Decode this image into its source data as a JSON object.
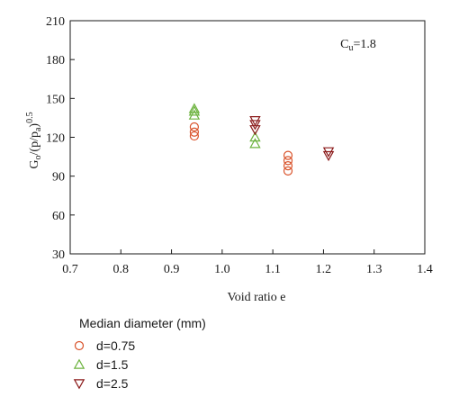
{
  "chart_data": {
    "type": "scatter",
    "xlabel": "Void ratio e",
    "ylabel": {
      "main": "G",
      "sub1": "o",
      "mid1": "/(p/p",
      "sub2": "a",
      "mid2": ")",
      "sup": "0.5"
    },
    "xlim": [
      0.7,
      1.4
    ],
    "ylim": [
      30,
      210
    ],
    "xticks": [
      "0.7",
      "0.8",
      "0.9",
      "1.0",
      "1.1",
      "1.2",
      "1.3",
      "1.4"
    ],
    "yticks": [
      "30",
      "60",
      "90",
      "120",
      "150",
      "180",
      "210"
    ],
    "annotation": {
      "main": "C",
      "sub": "u",
      "rest": "=1.8"
    },
    "grid": false,
    "legend": {
      "title": "Median diameter (mm)",
      "placement": "below"
    },
    "series": [
      {
        "name": "d=0.75",
        "marker": "circle",
        "color": "#d9532b",
        "points": [
          [
            0.945,
            121
          ],
          [
            0.945,
            124
          ],
          [
            0.945,
            128
          ],
          [
            1.13,
            94
          ],
          [
            1.13,
            98
          ],
          [
            1.13,
            102
          ],
          [
            1.13,
            106
          ]
        ]
      },
      {
        "name": "d=1.5",
        "marker": "triangle-up",
        "color": "#6db33f",
        "points": [
          [
            0.945,
            137
          ],
          [
            0.945,
            140
          ],
          [
            0.945,
            142
          ],
          [
            1.065,
            115
          ],
          [
            1.065,
            120
          ]
        ]
      },
      {
        "name": "d=2.5",
        "marker": "triangle-down",
        "color": "#8b1a1a",
        "points": [
          [
            1.065,
            126
          ],
          [
            1.065,
            130
          ],
          [
            1.065,
            133
          ],
          [
            1.21,
            106
          ],
          [
            1.21,
            109
          ]
        ]
      }
    ]
  }
}
